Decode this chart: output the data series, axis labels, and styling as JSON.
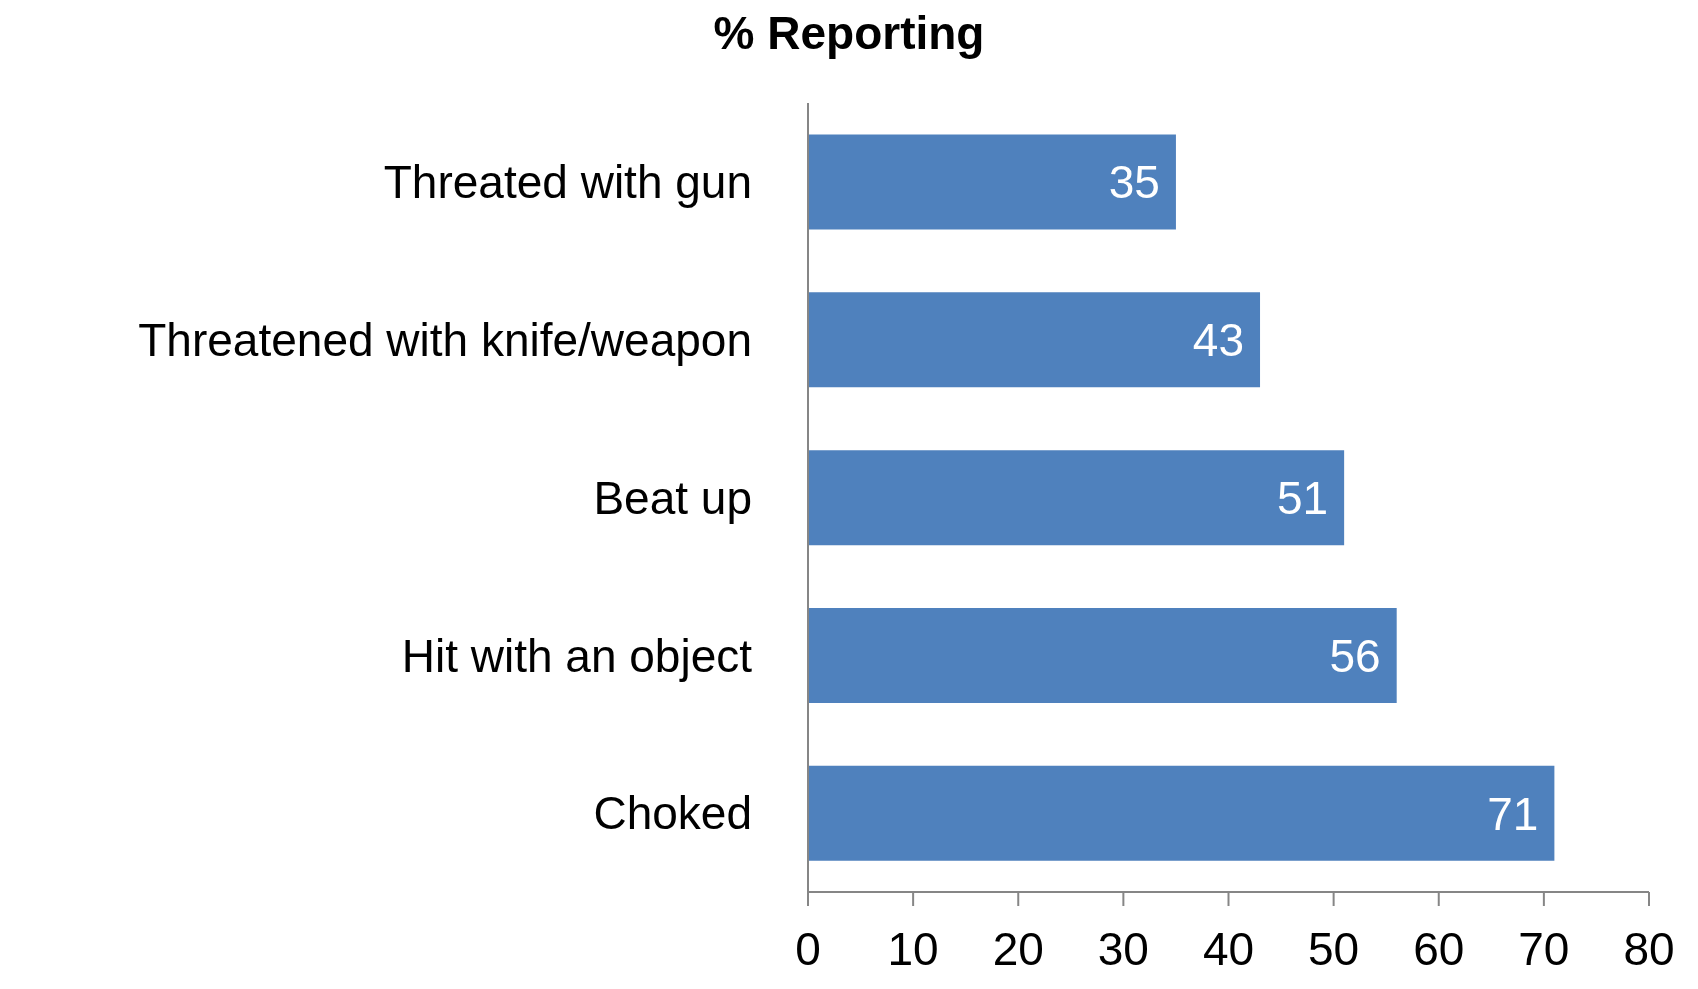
{
  "chart_data": {
    "type": "bar",
    "orientation": "horizontal",
    "title": "% Reporting",
    "categories": [
      "Threated with gun",
      "Threatened with knife/weapon",
      "Beat up",
      "Hit with an object",
      "Choked"
    ],
    "values": [
      35,
      43,
      51,
      56,
      71
    ],
    "color": "#4f81bd",
    "xlim": [
      0,
      80
    ],
    "xticks": [
      0,
      10,
      20,
      30,
      40,
      50,
      60,
      70,
      80
    ],
    "data_labels": true
  }
}
